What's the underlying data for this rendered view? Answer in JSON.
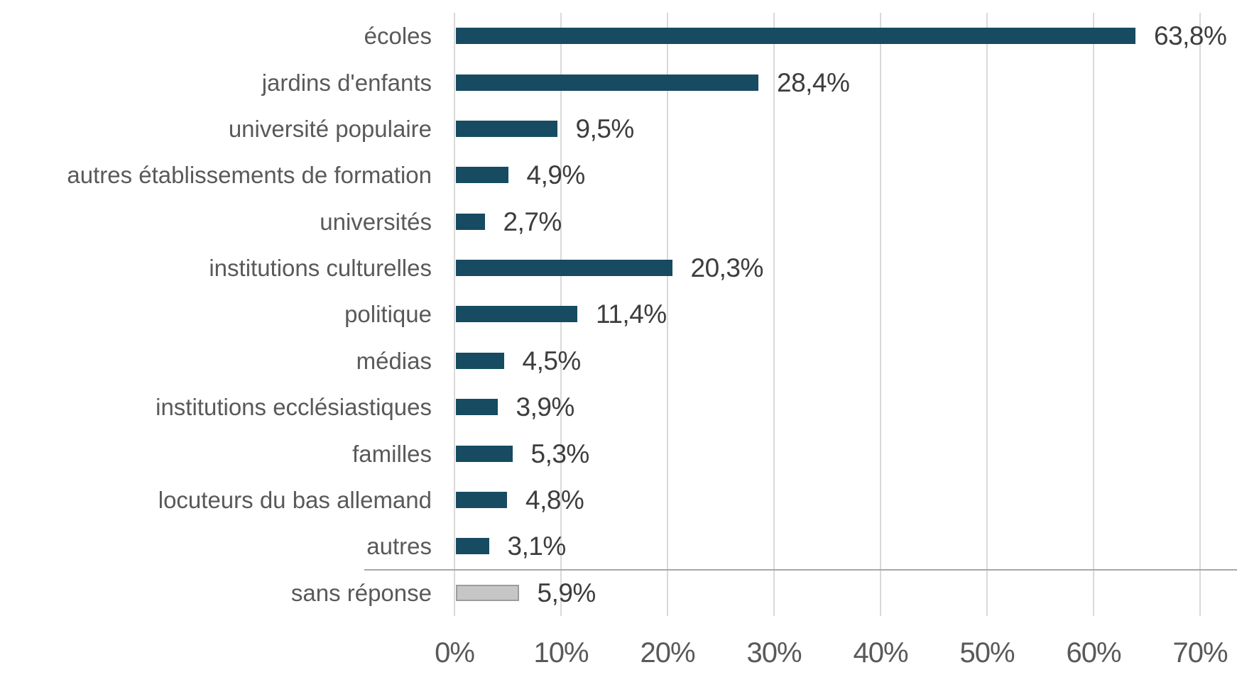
{
  "chart_data": {
    "type": "bar",
    "orientation": "horizontal",
    "categories": [
      "écoles",
      "jardins d'enfants",
      "université populaire",
      "autres établissements de formation",
      "universités",
      "institutions culturelles",
      "politique",
      "médias",
      "institutions ecclésiastiques",
      "familles",
      "locuteurs du bas allemand",
      "autres",
      "sans réponse"
    ],
    "values": [
      63.8,
      28.4,
      9.5,
      4.9,
      2.7,
      20.3,
      11.4,
      4.5,
      3.9,
      5.3,
      4.8,
      3.1,
      5.9
    ],
    "value_labels": [
      "63,8%",
      "28,4%",
      "9,5%",
      "4,9%",
      "2,7%",
      "20,3%",
      "11,4%",
      "4,5%",
      "3,9%",
      "5,3%",
      "4,8%",
      "3,1%",
      "5,9%"
    ],
    "x_ticks": [
      "0%",
      "10%",
      "20%",
      "30%",
      "40%",
      "50%",
      "60%",
      "70%"
    ],
    "xlim": [
      0,
      70
    ],
    "grid": true,
    "legend": "none",
    "colors": {
      "bar": "#164b61",
      "no_answer_fill": "#c6c6c6",
      "no_answer_border": "#9c9c9c",
      "gridline": "#d9d9d9",
      "separator": "#a8a8a8",
      "category_label": "#595959",
      "value_label": "#3d3d3d",
      "axis_label": "#595959"
    }
  }
}
